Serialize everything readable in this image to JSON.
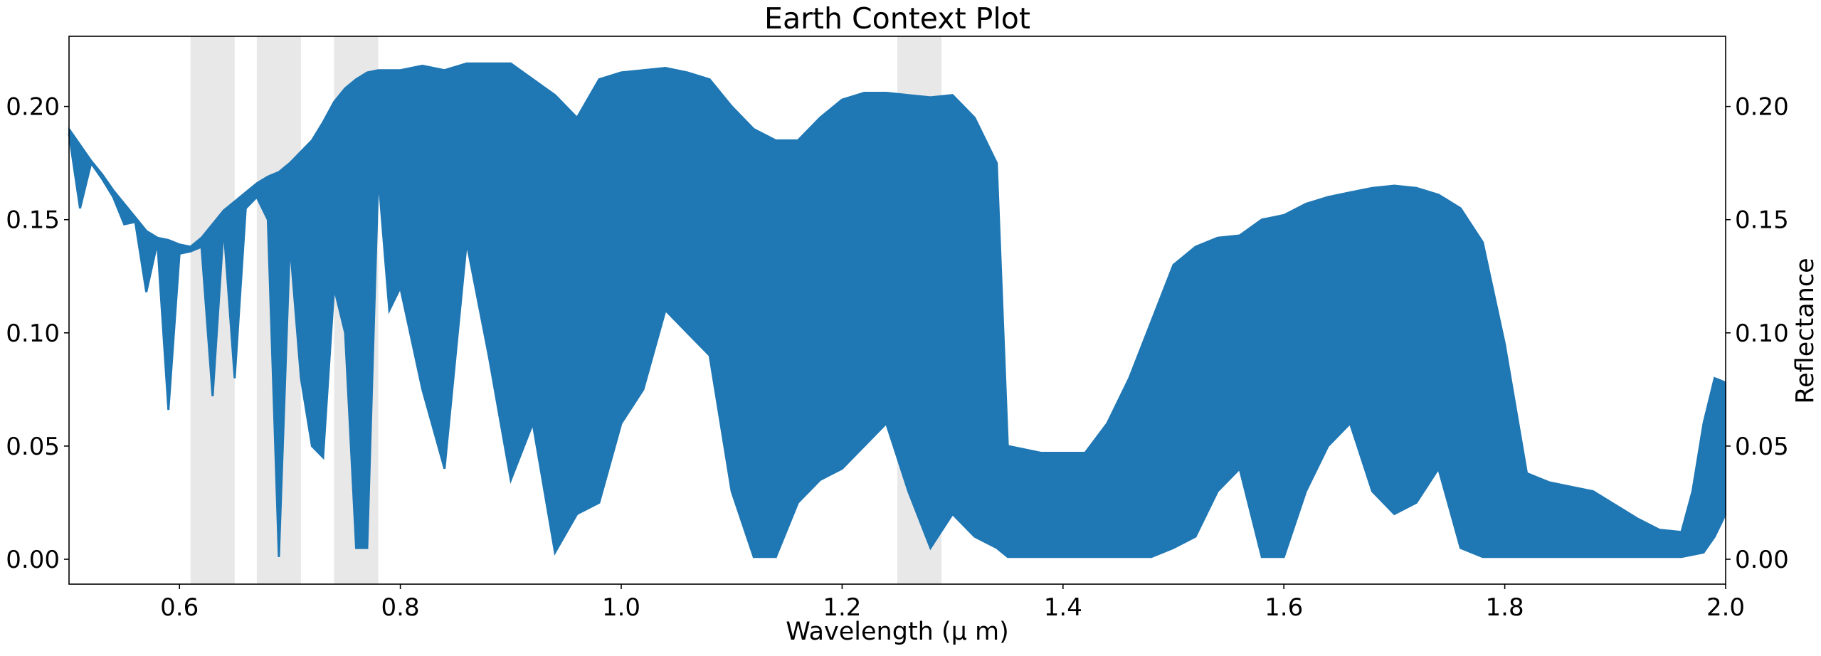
{
  "chart_data": {
    "type": "line",
    "title": "Earth Context Plot",
    "xlabel": "Wavelength (μ m)",
    "ylabel": "Reflectance",
    "xlim": [
      0.5,
      2.0
    ],
    "ylim": [
      -0.011,
      0.231
    ],
    "grid": false,
    "legend": "none",
    "y_axis_position": "both",
    "x_ticks": [
      0.6,
      0.8,
      1.0,
      1.2,
      1.4,
      1.6,
      1.8,
      2.0
    ],
    "x_tick_labels": [
      "0.6",
      "0.8",
      "1.0",
      "1.2",
      "1.4",
      "1.6",
      "1.8",
      "2.0"
    ],
    "y_ticks": [
      0.0,
      0.05,
      0.1,
      0.15,
      0.2
    ],
    "y_tick_labels": [
      "0.00",
      "0.05",
      "0.10",
      "0.15",
      "0.20"
    ],
    "shaded_bands": [
      [
        0.61,
        0.65
      ],
      [
        0.67,
        0.71
      ],
      [
        0.74,
        0.78
      ],
      [
        1.25,
        1.29
      ]
    ],
    "band_color": "#e8e8e8",
    "line_color": "#1f77b4",
    "series": [
      {
        "envelope_upper": [
          [
            0.5,
            0.19
          ],
          [
            0.51,
            0.183
          ],
          [
            0.52,
            0.176
          ],
          [
            0.53,
            0.17
          ],
          [
            0.54,
            0.163
          ],
          [
            0.55,
            0.157
          ],
          [
            0.56,
            0.151
          ],
          [
            0.57,
            0.145
          ],
          [
            0.58,
            0.142
          ],
          [
            0.59,
            0.141
          ],
          [
            0.6,
            0.139
          ],
          [
            0.61,
            0.138
          ],
          [
            0.62,
            0.142
          ],
          [
            0.63,
            0.148
          ],
          [
            0.64,
            0.154
          ],
          [
            0.65,
            0.158
          ],
          [
            0.66,
            0.162
          ],
          [
            0.67,
            0.166
          ],
          [
            0.68,
            0.169
          ],
          [
            0.69,
            0.171
          ],
          [
            0.7,
            0.175
          ],
          [
            0.71,
            0.18
          ],
          [
            0.72,
            0.185
          ],
          [
            0.73,
            0.193
          ],
          [
            0.74,
            0.202
          ],
          [
            0.75,
            0.208
          ],
          [
            0.76,
            0.212
          ],
          [
            0.77,
            0.215
          ],
          [
            0.78,
            0.216
          ],
          [
            0.79,
            0.216
          ],
          [
            0.8,
            0.216
          ],
          [
            0.82,
            0.218
          ],
          [
            0.84,
            0.216
          ],
          [
            0.86,
            0.219
          ],
          [
            0.88,
            0.219
          ],
          [
            0.9,
            0.219
          ],
          [
            0.92,
            0.212
          ],
          [
            0.94,
            0.205
          ],
          [
            0.96,
            0.195
          ],
          [
            0.98,
            0.212
          ],
          [
            1.0,
            0.215
          ],
          [
            1.02,
            0.216
          ],
          [
            1.04,
            0.217
          ],
          [
            1.06,
            0.215
          ],
          [
            1.08,
            0.212
          ],
          [
            1.1,
            0.2
          ],
          [
            1.12,
            0.19
          ],
          [
            1.14,
            0.185
          ],
          [
            1.16,
            0.185
          ],
          [
            1.18,
            0.195
          ],
          [
            1.2,
            0.203
          ],
          [
            1.22,
            0.206
          ],
          [
            1.24,
            0.206
          ],
          [
            1.26,
            0.205
          ],
          [
            1.28,
            0.204
          ],
          [
            1.3,
            0.205
          ],
          [
            1.32,
            0.195
          ],
          [
            1.34,
            0.175
          ],
          [
            1.35,
            0.05
          ],
          [
            1.38,
            0.047
          ],
          [
            1.4,
            0.047
          ],
          [
            1.42,
            0.047
          ],
          [
            1.44,
            0.06
          ],
          [
            1.46,
            0.08
          ],
          [
            1.48,
            0.105
          ],
          [
            1.5,
            0.13
          ],
          [
            1.52,
            0.138
          ],
          [
            1.54,
            0.142
          ],
          [
            1.56,
            0.143
          ],
          [
            1.58,
            0.15
          ],
          [
            1.6,
            0.152
          ],
          [
            1.62,
            0.157
          ],
          [
            1.64,
            0.16
          ],
          [
            1.66,
            0.162
          ],
          [
            1.68,
            0.164
          ],
          [
            1.7,
            0.165
          ],
          [
            1.72,
            0.164
          ],
          [
            1.74,
            0.161
          ],
          [
            1.76,
            0.155
          ],
          [
            1.78,
            0.14
          ],
          [
            1.8,
            0.095
          ],
          [
            1.82,
            0.038
          ],
          [
            1.84,
            0.034
          ],
          [
            1.86,
            0.032
          ],
          [
            1.88,
            0.03
          ],
          [
            1.9,
            0.024
          ],
          [
            1.92,
            0.018
          ],
          [
            1.94,
            0.013
          ],
          [
            1.96,
            0.012
          ],
          [
            1.97,
            0.03
          ],
          [
            1.98,
            0.06
          ],
          [
            1.99,
            0.08
          ],
          [
            2.0,
            0.078
          ]
        ],
        "envelope_lower": [
          [
            0.5,
            0.188
          ],
          [
            0.51,
            0.155
          ],
          [
            0.52,
            0.175
          ],
          [
            0.53,
            0.168
          ],
          [
            0.54,
            0.16
          ],
          [
            0.55,
            0.148
          ],
          [
            0.56,
            0.149
          ],
          [
            0.57,
            0.118
          ],
          [
            0.58,
            0.14
          ],
          [
            0.59,
            0.066
          ],
          [
            0.6,
            0.135
          ],
          [
            0.61,
            0.136
          ],
          [
            0.62,
            0.138
          ],
          [
            0.63,
            0.072
          ],
          [
            0.64,
            0.147
          ],
          [
            0.65,
            0.08
          ],
          [
            0.66,
            0.155
          ],
          [
            0.67,
            0.16
          ],
          [
            0.68,
            0.15
          ],
          [
            0.69,
            0.001
          ],
          [
            0.7,
            0.14
          ],
          [
            0.71,
            0.08
          ],
          [
            0.72,
            0.05
          ],
          [
            0.73,
            0.045
          ],
          [
            0.74,
            0.12
          ],
          [
            0.75,
            0.1
          ],
          [
            0.76,
            0.005
          ],
          [
            0.77,
            0.005
          ],
          [
            0.78,
            0.17
          ],
          [
            0.79,
            0.11
          ],
          [
            0.8,
            0.12
          ],
          [
            0.82,
            0.075
          ],
          [
            0.84,
            0.04
          ],
          [
            0.86,
            0.14
          ],
          [
            0.88,
            0.09
          ],
          [
            0.9,
            0.035
          ],
          [
            0.92,
            0.06
          ],
          [
            0.94,
            0.003
          ],
          [
            0.96,
            0.02
          ],
          [
            0.98,
            0.025
          ],
          [
            1.0,
            0.06
          ],
          [
            1.02,
            0.075
          ],
          [
            1.04,
            0.11
          ],
          [
            1.06,
            0.1
          ],
          [
            1.08,
            0.09
          ],
          [
            1.1,
            0.03
          ],
          [
            1.12,
            0.001
          ],
          [
            1.14,
            0.001
          ],
          [
            1.16,
            0.025
          ],
          [
            1.18,
            0.035
          ],
          [
            1.2,
            0.04
          ],
          [
            1.22,
            0.05
          ],
          [
            1.24,
            0.06
          ],
          [
            1.26,
            0.03
          ],
          [
            1.28,
            0.005
          ],
          [
            1.3,
            0.02
          ],
          [
            1.32,
            0.01
          ],
          [
            1.34,
            0.005
          ],
          [
            1.35,
            0.001
          ],
          [
            1.38,
            0.001
          ],
          [
            1.4,
            0.001
          ],
          [
            1.42,
            0.001
          ],
          [
            1.44,
            0.001
          ],
          [
            1.46,
            0.001
          ],
          [
            1.48,
            0.001
          ],
          [
            1.5,
            0.005
          ],
          [
            1.52,
            0.01
          ],
          [
            1.54,
            0.03
          ],
          [
            1.56,
            0.04
          ],
          [
            1.58,
            0.001
          ],
          [
            1.6,
            0.001
          ],
          [
            1.62,
            0.03
          ],
          [
            1.64,
            0.05
          ],
          [
            1.66,
            0.06
          ],
          [
            1.68,
            0.03
          ],
          [
            1.7,
            0.02
          ],
          [
            1.72,
            0.025
          ],
          [
            1.74,
            0.04
          ],
          [
            1.76,
            0.005
          ],
          [
            1.78,
            0.001
          ],
          [
            1.8,
            0.001
          ],
          [
            1.82,
            0.001
          ],
          [
            1.84,
            0.001
          ],
          [
            1.86,
            0.001
          ],
          [
            1.88,
            0.001
          ],
          [
            1.9,
            0.001
          ],
          [
            1.92,
            0.001
          ],
          [
            1.94,
            0.001
          ],
          [
            1.96,
            0.001
          ],
          [
            1.97,
            0.002
          ],
          [
            1.98,
            0.003
          ],
          [
            1.99,
            0.01
          ],
          [
            2.0,
            0.02
          ]
        ]
      }
    ]
  }
}
